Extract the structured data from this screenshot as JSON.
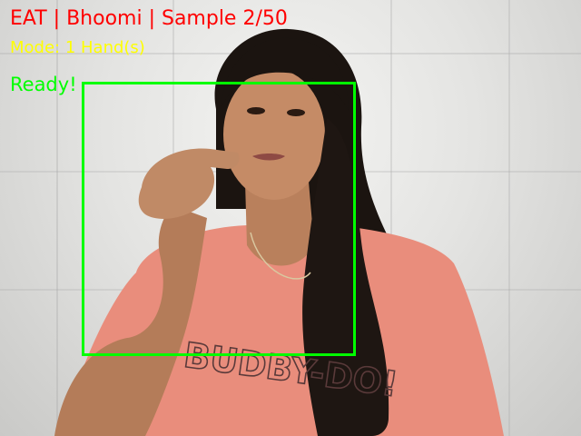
{
  "overlay": {
    "title": "EAT | Bhoomi | Sample 2/50",
    "mode": "Mode: 1 Hand(s)",
    "status": "Ready!"
  },
  "colors": {
    "title": "#ff0000",
    "mode": "#ffff00",
    "status": "#00ff00",
    "roi_box": "#00ff00"
  },
  "shirt_print": "BUDBY-DO!"
}
